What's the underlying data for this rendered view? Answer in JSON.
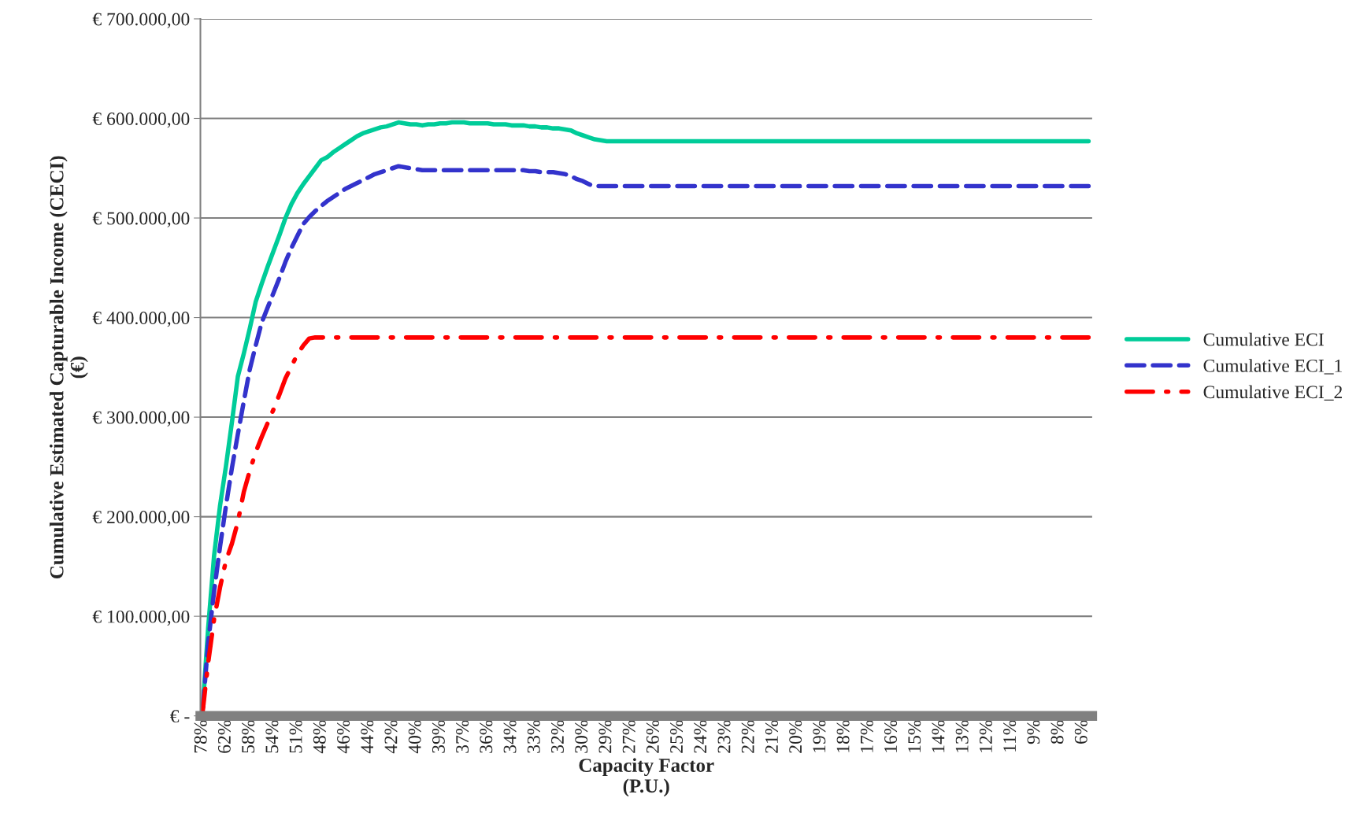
{
  "chart_data": {
    "type": "line",
    "xlabel": "Capacity Factor\n(P.U.)",
    "ylabel": "Cumulative Estimated Capturable Income (CECI)\n(€)",
    "categories": [
      "78%",
      null,
      null,
      null,
      "62%",
      null,
      null,
      null,
      "58%",
      null,
      null,
      null,
      "54%",
      null,
      null,
      null,
      "51%",
      null,
      null,
      null,
      "48%",
      null,
      null,
      null,
      "46%",
      null,
      null,
      null,
      "44%",
      null,
      null,
      null,
      "42%",
      null,
      null,
      null,
      "40%",
      null,
      null,
      null,
      "39%",
      null,
      null,
      null,
      "37%",
      null,
      null,
      null,
      "36%",
      null,
      null,
      null,
      "34%",
      null,
      null,
      null,
      "33%",
      null,
      null,
      null,
      "32%",
      null,
      null,
      null,
      "30%",
      null,
      null,
      null,
      "29%",
      null,
      null,
      null,
      "27%",
      null,
      null,
      null,
      "26%",
      null,
      null,
      null,
      "25%",
      null,
      null,
      null,
      "24%",
      null,
      null,
      null,
      "23%",
      null,
      null,
      null,
      "22%",
      null,
      null,
      null,
      "21%",
      null,
      null,
      null,
      "20%",
      null,
      null,
      null,
      "19%",
      null,
      null,
      null,
      "18%",
      null,
      null,
      null,
      "17%",
      null,
      null,
      null,
      "16%",
      null,
      null,
      null,
      "15%",
      null,
      null,
      null,
      "14%",
      null,
      null,
      null,
      "13%",
      null,
      null,
      null,
      "12%",
      null,
      null,
      null,
      "11%",
      null,
      null,
      null,
      "9%",
      null,
      null,
      null,
      "8%",
      null,
      null,
      null,
      "6%",
      null
    ],
    "ylim": [
      0,
      700000
    ],
    "yticks": [
      {
        "value": 0,
        "label": "€ -"
      },
      {
        "value": 100000,
        "label": "€ 100.000,00"
      },
      {
        "value": 200000,
        "label": "€ 200.000,00"
      },
      {
        "value": 300000,
        "label": "€ 300.000,00"
      },
      {
        "value": 400000,
        "label": "€ 400.000,00"
      },
      {
        "value": 500000,
        "label": "€ 500.000,00"
      },
      {
        "value": 600000,
        "label": "€ 600.000,00"
      },
      {
        "value": 700000,
        "label": "€ 700.000,00"
      }
    ],
    "grid": "y",
    "legend": "right",
    "marker": "none",
    "series": [
      {
        "name": "Cumulative ECI",
        "color": "#00cc99",
        "line_style": "solid",
        "values": [
          0,
          88000,
          161000,
          211000,
          251000,
          295000,
          341000,
          364000,
          389000,
          416000,
          434000,
          451000,
          467000,
          483000,
          500000,
          514000,
          525000,
          534000,
          542000,
          550000,
          558000,
          561000,
          566000,
          570000,
          574000,
          578000,
          582000,
          585000,
          587000,
          589000,
          591000,
          592000,
          594000,
          596000,
          595000,
          594000,
          594000,
          593000,
          594000,
          594000,
          595000,
          595000,
          596000,
          596000,
          596000,
          595000,
          595000,
          595000,
          595000,
          594000,
          594000,
          594000,
          593000,
          593000,
          593000,
          592000,
          592000,
          591000,
          591000,
          590000,
          590000,
          589000,
          588000,
          585000,
          583000,
          581000,
          579000,
          578000,
          577000,
          577000,
          577000,
          577000,
          577000,
          577000,
          577000,
          577000,
          577000,
          577000,
          577000,
          577000,
          577000,
          577000,
          577000,
          577000,
          577000,
          577000,
          577000,
          577000,
          577000,
          577000,
          577000,
          577000,
          577000,
          577000,
          577000,
          577000,
          577000,
          577000,
          577000,
          577000,
          577000,
          577000,
          577000,
          577000,
          577000,
          577000,
          577000,
          577000,
          577000,
          577000,
          577000,
          577000,
          577000,
          577000,
          577000,
          577000,
          577000,
          577000,
          577000,
          577000,
          577000,
          577000,
          577000,
          577000,
          577000,
          577000,
          577000,
          577000,
          577000,
          577000,
          577000,
          577000,
          577000,
          577000,
          577000,
          577000,
          577000,
          577000,
          577000,
          577000,
          577000,
          577000,
          577000,
          577000,
          577000,
          577000,
          577000,
          577000,
          577000,
          577000
        ]
      },
      {
        "name": "Cumulative ECI_1",
        "color": "#3333cc",
        "line_style": "dashed",
        "values": [
          0,
          73000,
          125000,
          170000,
          211000,
          249000,
          283000,
          316000,
          348000,
          372000,
          395000,
          410000,
          425000,
          440000,
          456000,
          470000,
          482000,
          494000,
          501000,
          507000,
          512000,
          517000,
          521000,
          525000,
          529000,
          532000,
          535000,
          538000,
          541000,
          544000,
          546000,
          548000,
          550000,
          552000,
          551000,
          550000,
          549000,
          548000,
          548000,
          548000,
          548000,
          548000,
          548000,
          548000,
          548000,
          548000,
          548000,
          548000,
          548000,
          548000,
          548000,
          548000,
          548000,
          548000,
          548000,
          547000,
          547000,
          546000,
          546000,
          546000,
          545000,
          544000,
          542000,
          539000,
          537000,
          534000,
          532000,
          532000,
          532000,
          532000,
          532000,
          532000,
          532000,
          532000,
          532000,
          532000,
          532000,
          532000,
          532000,
          532000,
          532000,
          532000,
          532000,
          532000,
          532000,
          532000,
          532000,
          532000,
          532000,
          532000,
          532000,
          532000,
          532000,
          532000,
          532000,
          532000,
          532000,
          532000,
          532000,
          532000,
          532000,
          532000,
          532000,
          532000,
          532000,
          532000,
          532000,
          532000,
          532000,
          532000,
          532000,
          532000,
          532000,
          532000,
          532000,
          532000,
          532000,
          532000,
          532000,
          532000,
          532000,
          532000,
          532000,
          532000,
          532000,
          532000,
          532000,
          532000,
          532000,
          532000,
          532000,
          532000,
          532000,
          532000,
          532000,
          532000,
          532000,
          532000,
          532000,
          532000,
          532000,
          532000,
          532000,
          532000,
          532000,
          532000,
          532000,
          532000,
          532000,
          532000
        ]
      },
      {
        "name": "Cumulative ECI_2",
        "color": "#ff0000",
        "line_style": "dashdot",
        "values": [
          0,
          53000,
          97000,
          129000,
          156000,
          173000,
          195000,
          225000,
          246000,
          265000,
          280000,
          294000,
          308000,
          323000,
          339000,
          351000,
          363000,
          372000,
          379000,
          380000,
          380000,
          380000,
          380000,
          380000,
          380000,
          380000,
          380000,
          380000,
          380000,
          380000,
          380000,
          380000,
          380000,
          380000,
          380000,
          380000,
          380000,
          380000,
          380000,
          380000,
          380000,
          380000,
          380000,
          380000,
          380000,
          380000,
          380000,
          380000,
          380000,
          380000,
          380000,
          380000,
          380000,
          380000,
          380000,
          380000,
          380000,
          380000,
          380000,
          380000,
          380000,
          380000,
          380000,
          380000,
          380000,
          380000,
          380000,
          380000,
          380000,
          380000,
          380000,
          380000,
          380000,
          380000,
          380000,
          380000,
          380000,
          380000,
          380000,
          380000,
          380000,
          380000,
          380000,
          380000,
          380000,
          380000,
          380000,
          380000,
          380000,
          380000,
          380000,
          380000,
          380000,
          380000,
          380000,
          380000,
          380000,
          380000,
          380000,
          380000,
          380000,
          380000,
          380000,
          380000,
          380000,
          380000,
          380000,
          380000,
          380000,
          380000,
          380000,
          380000,
          380000,
          380000,
          380000,
          380000,
          380000,
          380000,
          380000,
          380000,
          380000,
          380000,
          380000,
          380000,
          380000,
          380000,
          380000,
          380000,
          380000,
          380000,
          380000,
          380000,
          380000,
          380000,
          380000,
          380000,
          380000,
          380000,
          380000,
          380000,
          380000,
          380000,
          380000,
          380000,
          380000,
          380000,
          380000,
          380000,
          380000,
          380000
        ]
      }
    ]
  }
}
